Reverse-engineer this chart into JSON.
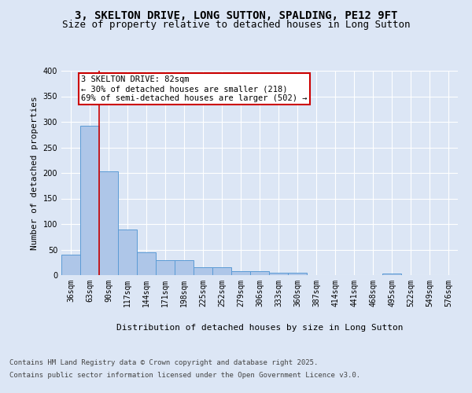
{
  "title_line1": "3, SKELTON DRIVE, LONG SUTTON, SPALDING, PE12 9FT",
  "title_line2": "Size of property relative to detached houses in Long Sutton",
  "xlabel": "Distribution of detached houses by size in Long Sutton",
  "ylabel": "Number of detached properties",
  "bar_color": "#aec6e8",
  "bar_edge_color": "#5b9bd5",
  "background_color": "#dce6f5",
  "plot_bg_color": "#dce6f5",
  "categories": [
    "36sqm",
    "63sqm",
    "90sqm",
    "117sqm",
    "144sqm",
    "171sqm",
    "198sqm",
    "225sqm",
    "252sqm",
    "279sqm",
    "306sqm",
    "333sqm",
    "360sqm",
    "387sqm",
    "414sqm",
    "441sqm",
    "468sqm",
    "495sqm",
    "522sqm",
    "549sqm",
    "576sqm"
  ],
  "values": [
    40,
    293,
    203,
    90,
    44,
    29,
    29,
    15,
    15,
    8,
    7,
    5,
    5,
    0,
    0,
    0,
    0,
    3,
    0,
    0,
    0
  ],
  "annotation_text": "3 SKELTON DRIVE: 82sqm\n← 30% of detached houses are smaller (218)\n69% of semi-detached houses are larger (502) →",
  "ylim": [
    0,
    400
  ],
  "yticks": [
    0,
    50,
    100,
    150,
    200,
    250,
    300,
    350,
    400
  ],
  "footer_line1": "Contains HM Land Registry data © Crown copyright and database right 2025.",
  "footer_line2": "Contains public sector information licensed under the Open Government Licence v3.0.",
  "grid_color": "#ffffff",
  "vline_color": "#cc0000",
  "annotation_box_color": "#cc0000",
  "title_fontsize": 10,
  "subtitle_fontsize": 9,
  "axis_label_fontsize": 8,
  "tick_fontsize": 7,
  "footer_fontsize": 6.5,
  "annotation_fontsize": 7.5
}
